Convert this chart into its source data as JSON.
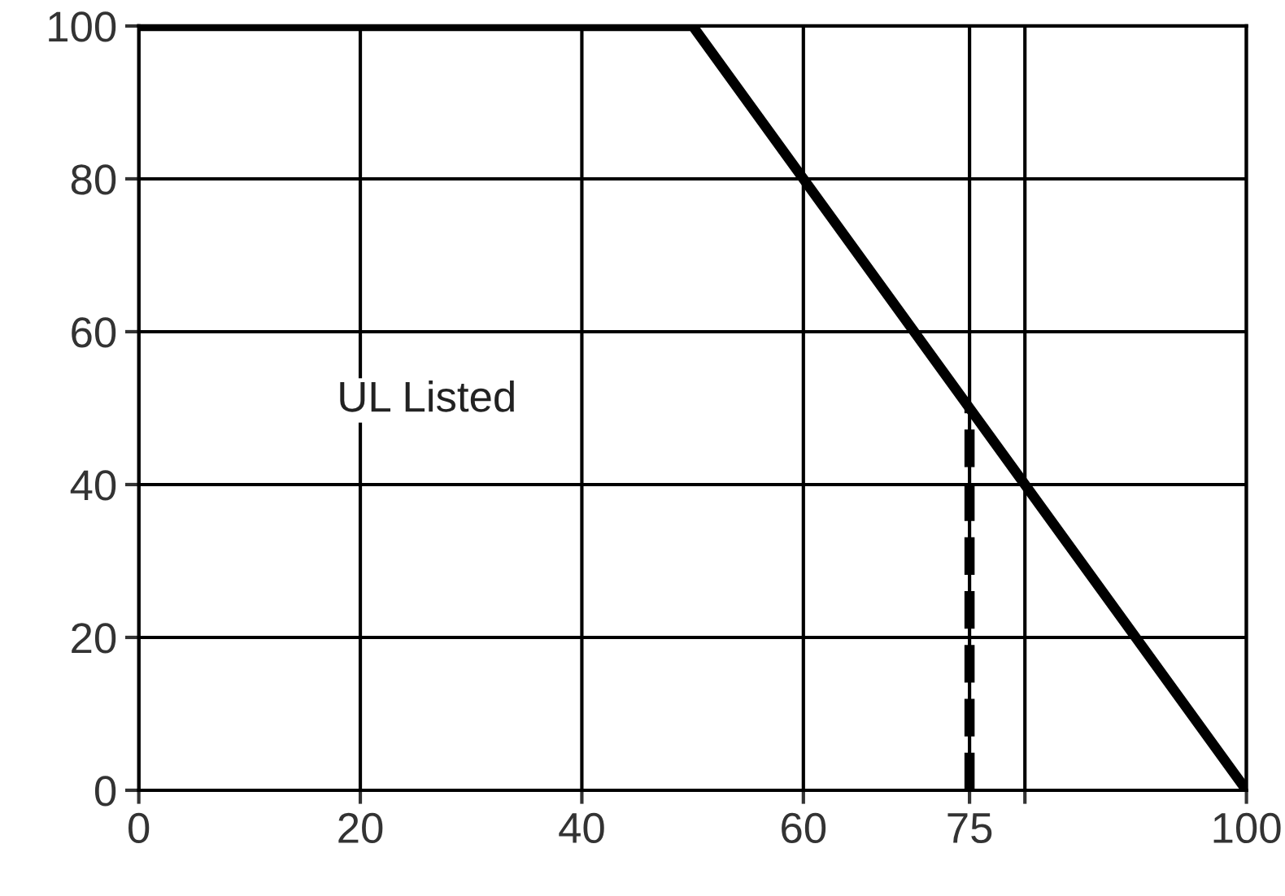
{
  "chart_data": {
    "type": "line",
    "x": [
      0,
      50,
      100
    ],
    "series": [
      {
        "color": "#000000",
        "values": [
          100,
          100,
          0
        ],
        "line_style": "solid"
      },
      {
        "color": "#000000",
        "x": [
          75,
          75
        ],
        "values": [
          0,
          50
        ],
        "line_style": "dashed"
      }
    ],
    "xlim": [
      0,
      100
    ],
    "ylim": [
      0,
      100
    ],
    "xticks": [
      0,
      20,
      40,
      60,
      75,
      {
        "value": 80,
        "label": null
      },
      100
    ],
    "yticks": [
      0,
      20,
      40,
      60,
      80,
      100
    ],
    "grid": true,
    "legend": false,
    "marker": "none",
    "annotations": [
      "UL Listed"
    ]
  }
}
